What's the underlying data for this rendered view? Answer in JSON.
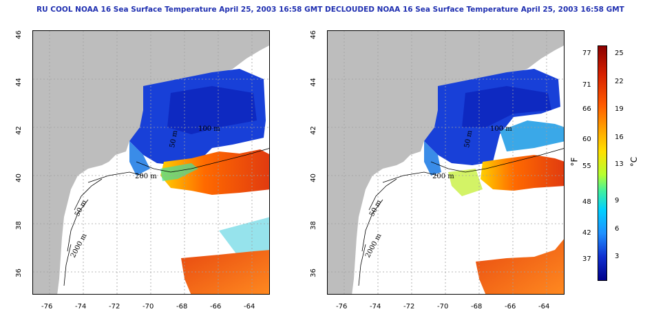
{
  "panels": [
    {
      "title": "RU COOL NOAA 16 Sea Surface Temperature April 25, 2003 16:58 GMT",
      "variant": "raw"
    },
    {
      "title": "DECLOUDED NOAA 16 Sea Surface Temperature April 25, 2003 16:58 GMT",
      "variant": "declouded"
    }
  ],
  "lat_ticks": [
    "46",
    "44",
    "42",
    "40",
    "38",
    "36"
  ],
  "lon_ticks": [
    "-76",
    "-74",
    "-72",
    "-70",
    "-68",
    "-66",
    "-64"
  ],
  "contour_labels": [
    "200 m",
    "2000 m",
    "50 m",
    "100 m",
    "50 m"
  ],
  "colorbar": {
    "fahrenheit_label": "°F",
    "celsius_label": "°C",
    "fahrenheit_ticks": [
      "77",
      "71",
      "66",
      "60",
      "55",
      "48",
      "42",
      "37"
    ],
    "celsius_ticks": [
      "25",
      "22",
      "19",
      "16",
      "13",
      "9",
      "6",
      "3"
    ]
  },
  "colors": {
    "land": "#bdbdbd",
    "title": "#1f2fb0",
    "cold": "#1038d8",
    "warm": "#f06010"
  }
}
